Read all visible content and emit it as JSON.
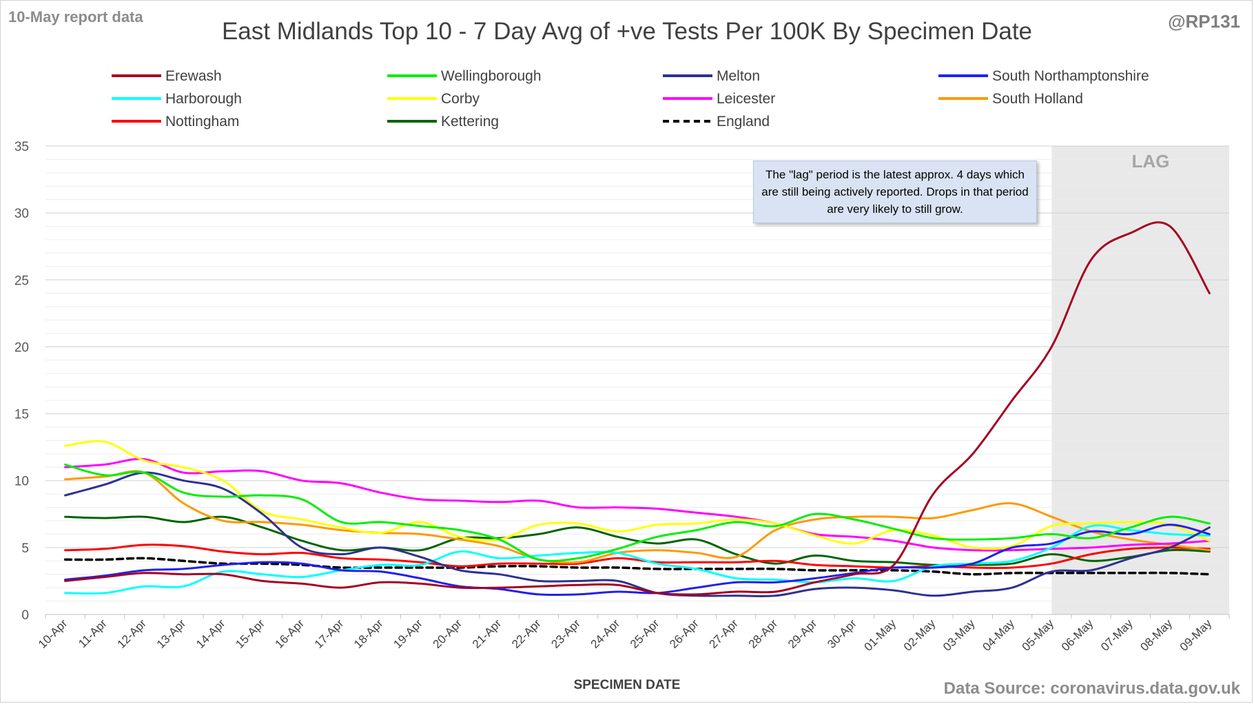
{
  "header": {
    "report_date": "10-May report data",
    "handle": "@RP131",
    "title": "East Midlands Top 10 - 7 Day Avg of +ve Tests Per 100K By Specimen Date"
  },
  "footer": {
    "source": "Data Source: coronavirus.data.gov.uk"
  },
  "annotation": {
    "lag_note": "The \"lag\" period is the latest approx. 4 days which are still being actively reported. Drops in that period are very likely to still grow.",
    "lag_label": "LAG",
    "lag_start": "05-May",
    "lag_end": "09-May"
  },
  "chart_data": {
    "type": "line",
    "title": "East Midlands Top 10 - 7 Day Avg of +ve Tests Per 100K By Specimen Date",
    "xlabel": "SPECIMEN DATE",
    "ylabel": "",
    "ylim": [
      0,
      35
    ],
    "yticks": [
      0,
      5,
      10,
      15,
      20,
      25,
      30,
      35
    ],
    "grid": true,
    "legend_position": "top",
    "categories": [
      "10-Apr",
      "11-Apr",
      "12-Apr",
      "13-Apr",
      "14-Apr",
      "15-Apr",
      "16-Apr",
      "17-Apr",
      "18-Apr",
      "19-Apr",
      "20-Apr",
      "21-Apr",
      "22-Apr",
      "23-Apr",
      "24-Apr",
      "25-Apr",
      "26-Apr",
      "27-Apr",
      "28-Apr",
      "29-Apr",
      "30-Apr",
      "01-May",
      "02-May",
      "03-May",
      "04-May",
      "05-May",
      "06-May",
      "07-May",
      "08-May",
      "09-May"
    ],
    "series": [
      {
        "name": "Erewash",
        "color": "#a50021",
        "dash": false,
        "values": [
          2.5,
          2.8,
          3.1,
          3.0,
          3.0,
          2.5,
          2.3,
          2.0,
          2.4,
          2.3,
          2.0,
          2.0,
          2.1,
          2.2,
          2.2,
          1.6,
          1.5,
          1.7,
          1.7,
          2.4,
          3.0,
          3.7,
          9.0,
          12.0,
          16.0,
          20.0,
          26.5,
          28.5,
          29.0,
          24.0
        ]
      },
      {
        "name": "Wellingborough",
        "color": "#00ee00",
        "dash": false,
        "values": [
          11.2,
          10.4,
          10.6,
          9.1,
          8.8,
          8.9,
          8.6,
          6.9,
          6.9,
          6.6,
          6.3,
          5.6,
          4.1,
          4.2,
          4.9,
          5.8,
          6.3,
          6.9,
          6.6,
          7.5,
          7.1,
          6.4,
          5.7,
          5.6,
          5.7,
          6.0,
          5.7,
          6.5,
          7.3,
          6.8
        ]
      },
      {
        "name": "Melton",
        "color": "#2e3192",
        "dash": false,
        "values": [
          8.9,
          9.7,
          10.6,
          10.0,
          9.4,
          7.5,
          5.0,
          4.5,
          5.0,
          4.3,
          3.3,
          3.0,
          2.5,
          2.5,
          2.5,
          1.6,
          1.4,
          1.4,
          1.4,
          1.9,
          2.0,
          1.8,
          1.4,
          1.7,
          2.0,
          3.2,
          3.3,
          4.2,
          5.0,
          6.5
        ]
      },
      {
        "name": "South Northamptonshire",
        "color": "#2020ee",
        "dash": false,
        "values": [
          2.6,
          2.9,
          3.3,
          3.4,
          3.7,
          3.9,
          3.8,
          3.3,
          3.2,
          2.7,
          2.1,
          1.9,
          1.5,
          1.5,
          1.7,
          1.6,
          2.0,
          2.4,
          2.4,
          2.7,
          3.1,
          3.5,
          3.5,
          3.8,
          5.0,
          5.3,
          6.2,
          6.0,
          6.7,
          6.0
        ]
      },
      {
        "name": "Harborough",
        "color": "#00ffff",
        "dash": false,
        "values": [
          1.6,
          1.6,
          2.1,
          2.1,
          3.2,
          3.0,
          2.8,
          3.3,
          3.7,
          3.7,
          4.7,
          4.2,
          4.4,
          4.6,
          4.6,
          3.8,
          3.4,
          2.7,
          2.6,
          2.4,
          2.7,
          2.5,
          3.6,
          3.8,
          4.0,
          5.0,
          6.6,
          6.3,
          6.0,
          5.9
        ]
      },
      {
        "name": "Corby",
        "color": "#ffff00",
        "dash": false,
        "values": [
          12.6,
          12.9,
          11.5,
          11.0,
          10.0,
          7.7,
          7.1,
          6.5,
          6.1,
          6.9,
          5.8,
          5.6,
          6.7,
          6.8,
          6.2,
          6.7,
          6.8,
          7.1,
          6.8,
          5.9,
          5.3,
          6.3,
          5.9,
          5.0,
          5.1,
          6.6,
          6.8,
          6.9,
          6.7,
          5.5
        ]
      },
      {
        "name": "Leicester",
        "color": "#ff00ff",
        "dash": false,
        "values": [
          11.0,
          11.2,
          11.6,
          10.6,
          10.7,
          10.7,
          10.0,
          9.8,
          9.1,
          8.6,
          8.5,
          8.4,
          8.5,
          8.0,
          8.0,
          7.9,
          7.6,
          7.3,
          6.8,
          6.0,
          5.8,
          5.5,
          5.0,
          4.8,
          4.8,
          4.9,
          5.0,
          5.2,
          5.3,
          5.5
        ]
      },
      {
        "name": "South Holland",
        "color": "#ff9900",
        "dash": false,
        "values": [
          10.1,
          10.3,
          10.6,
          8.3,
          7.0,
          6.9,
          6.7,
          6.3,
          6.1,
          6.0,
          5.6,
          5.1,
          4.1,
          3.9,
          4.6,
          4.8,
          4.6,
          4.3,
          6.3,
          7.1,
          7.3,
          7.3,
          7.2,
          7.8,
          8.3,
          7.3,
          6.2,
          5.6,
          5.2,
          4.8
        ]
      },
      {
        "name": "Nottingham",
        "color": "#ff0000",
        "dash": false,
        "values": [
          4.8,
          4.9,
          5.2,
          5.1,
          4.7,
          4.5,
          4.6,
          4.2,
          4.1,
          3.9,
          3.6,
          3.8,
          3.8,
          3.8,
          4.2,
          3.9,
          3.9,
          3.9,
          4.0,
          3.7,
          3.6,
          3.5,
          3.6,
          3.5,
          3.5,
          3.8,
          4.5,
          4.9,
          5.0,
          4.9
        ]
      },
      {
        "name": "Kettering",
        "color": "#006400",
        "dash": false,
        "values": [
          7.3,
          7.2,
          7.3,
          6.9,
          7.3,
          6.5,
          5.5,
          4.8,
          5.0,
          4.8,
          5.7,
          5.7,
          6.0,
          6.5,
          5.8,
          5.3,
          5.6,
          4.5,
          3.8,
          4.4,
          4.0,
          3.9,
          3.7,
          3.7,
          3.8,
          4.5,
          4.0,
          4.3,
          4.8,
          4.7
        ]
      },
      {
        "name": "England",
        "color": "#000000",
        "dash": true,
        "values": [
          4.1,
          4.1,
          4.2,
          4.0,
          3.8,
          3.8,
          3.7,
          3.5,
          3.5,
          3.5,
          3.5,
          3.6,
          3.6,
          3.5,
          3.5,
          3.4,
          3.4,
          3.4,
          3.4,
          3.3,
          3.3,
          3.3,
          3.2,
          3.0,
          3.1,
          3.1,
          3.1,
          3.1,
          3.1,
          3.0
        ]
      }
    ]
  }
}
